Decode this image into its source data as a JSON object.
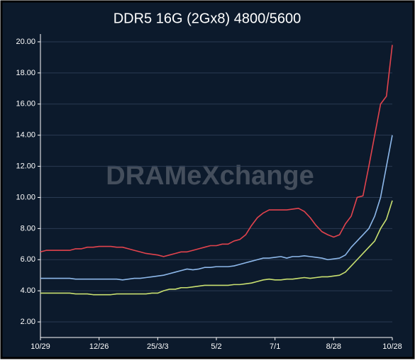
{
  "chart_data": {
    "type": "line",
    "title": "DDR5 16G (2Gx8) 4800/5600",
    "watermark": "DRAMeXchange",
    "categories": [
      "10/29",
      null,
      null,
      null,
      null,
      null,
      null,
      null,
      null,
      null,
      "12/26",
      null,
      null,
      null,
      null,
      null,
      null,
      null,
      null,
      null,
      "25/3/3",
      null,
      null,
      null,
      null,
      null,
      null,
      null,
      null,
      null,
      "5/2",
      null,
      null,
      null,
      null,
      null,
      null,
      null,
      null,
      null,
      "7/1",
      null,
      null,
      null,
      null,
      null,
      null,
      null,
      null,
      null,
      "8/28",
      null,
      null,
      null,
      null,
      null,
      null,
      null,
      null,
      null,
      "10/28"
    ],
    "series": [
      {
        "color": "#e2434d",
        "values": [
          6.5,
          6.6,
          6.6,
          6.6,
          6.6,
          6.6,
          6.7,
          6.7,
          6.8,
          6.8,
          6.85,
          6.85,
          6.85,
          6.8,
          6.8,
          6.7,
          6.6,
          6.5,
          6.4,
          6.35,
          6.3,
          6.2,
          6.3,
          6.4,
          6.5,
          6.5,
          6.6,
          6.7,
          6.8,
          6.9,
          6.9,
          7.0,
          7.0,
          7.2,
          7.3,
          7.6,
          8.2,
          8.7,
          9.0,
          9.2,
          9.2,
          9.2,
          9.2,
          9.25,
          9.3,
          9.1,
          8.7,
          8.2,
          7.8,
          7.6,
          7.45,
          7.6,
          8.3,
          8.8,
          10.0,
          10.1,
          12.0,
          14.0,
          16.0,
          16.5,
          19.8
        ]
      },
      {
        "color": "#8db8ea",
        "values": [
          4.8,
          4.8,
          4.8,
          4.8,
          4.8,
          4.8,
          4.75,
          4.75,
          4.75,
          4.75,
          4.75,
          4.75,
          4.75,
          4.75,
          4.7,
          4.75,
          4.8,
          4.8,
          4.85,
          4.9,
          4.95,
          5.0,
          5.1,
          5.2,
          5.3,
          5.4,
          5.35,
          5.4,
          5.5,
          5.5,
          5.55,
          5.55,
          5.55,
          5.6,
          5.7,
          5.8,
          5.9,
          6.0,
          6.1,
          6.1,
          6.15,
          6.2,
          6.1,
          6.2,
          6.2,
          6.25,
          6.2,
          6.15,
          6.1,
          6.0,
          6.05,
          6.1,
          6.3,
          6.8,
          7.2,
          7.6,
          8.0,
          8.8,
          10.0,
          12.0,
          14.0
        ]
      },
      {
        "color": "#c9e070",
        "values": [
          3.85,
          3.85,
          3.85,
          3.85,
          3.85,
          3.85,
          3.8,
          3.8,
          3.8,
          3.75,
          3.75,
          3.75,
          3.75,
          3.8,
          3.8,
          3.8,
          3.8,
          3.8,
          3.8,
          3.85,
          3.85,
          4.0,
          4.1,
          4.1,
          4.2,
          4.2,
          4.25,
          4.3,
          4.35,
          4.35,
          4.35,
          4.35,
          4.35,
          4.4,
          4.4,
          4.45,
          4.5,
          4.6,
          4.7,
          4.75,
          4.7,
          4.7,
          4.75,
          4.75,
          4.8,
          4.85,
          4.8,
          4.85,
          4.9,
          4.9,
          4.95,
          5.0,
          5.2,
          5.6,
          6.0,
          6.4,
          6.8,
          7.2,
          8.0,
          8.6,
          9.8
        ]
      }
    ],
    "ylim": [
      1,
      20.5
    ],
    "yticks": [
      {
        "value": 2,
        "label": "2.00"
      },
      {
        "value": 4,
        "label": "4.00"
      },
      {
        "value": 6,
        "label": "6.00"
      },
      {
        "value": 8,
        "label": "8.00"
      },
      {
        "value": 10,
        "label": "10.00"
      },
      {
        "value": 12,
        "label": "12.00"
      },
      {
        "value": 14,
        "label": "14.00"
      },
      {
        "value": 16,
        "label": "16.00"
      },
      {
        "value": 18,
        "label": "18.00"
      },
      {
        "value": 20,
        "label": "20.00"
      }
    ],
    "grid": true
  }
}
